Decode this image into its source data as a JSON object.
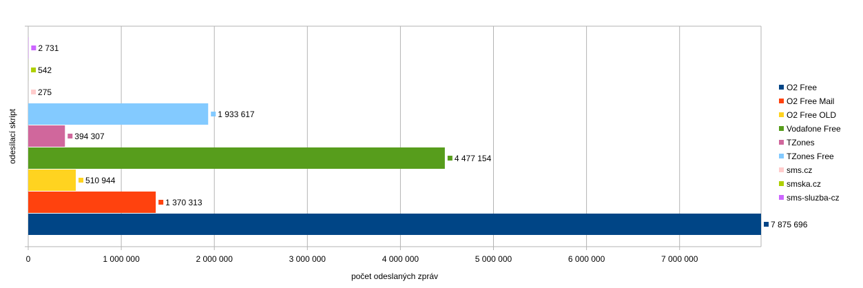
{
  "chart_data": {
    "type": "bar",
    "orientation": "horizontal",
    "title": "",
    "xlabel": "počet odeslaných zpráv",
    "ylabel": "odesílací skript",
    "xlim": [
      0,
      7875696
    ],
    "x_ticks": [
      0,
      1000000,
      2000000,
      3000000,
      4000000,
      5000000,
      6000000,
      7000000
    ],
    "x_tick_labels": [
      "0",
      "1 000 000",
      "2 000 000",
      "3 000 000",
      "4 000 000",
      "5 000 000",
      "6 000 000",
      "7 000 000"
    ],
    "grid": true,
    "legend_position": "right",
    "series": [
      {
        "name": "O2 Free",
        "value": 7875696,
        "label": "7 875 696",
        "color": "#004586"
      },
      {
        "name": "O2 Free Mail",
        "value": 1370313,
        "label": "1 370 313",
        "color": "#ff420e"
      },
      {
        "name": "O2 Free OLD",
        "value": 510944,
        "label": "510 944",
        "color": "#ffd320"
      },
      {
        "name": "Vodafone Free",
        "value": 4477154,
        "label": "4 477 154",
        "color": "#579d1c"
      },
      {
        "name": "TZones",
        "value": 394307,
        "label": "394 307",
        "color": "#d0679c"
      },
      {
        "name": "TZones Free",
        "value": 1933617,
        "label": "1 933 617",
        "color": "#83caff"
      },
      {
        "name": "sms.cz",
        "value": 275,
        "label": "275",
        "color": "#ffcccc"
      },
      {
        "name": "smska.cz",
        "value": 542,
        "label": "542",
        "color": "#aecf00"
      },
      {
        "name": "sms-sluzba-cz",
        "value": 2731,
        "label": "2 731",
        "color": "#cc66ff"
      }
    ]
  }
}
